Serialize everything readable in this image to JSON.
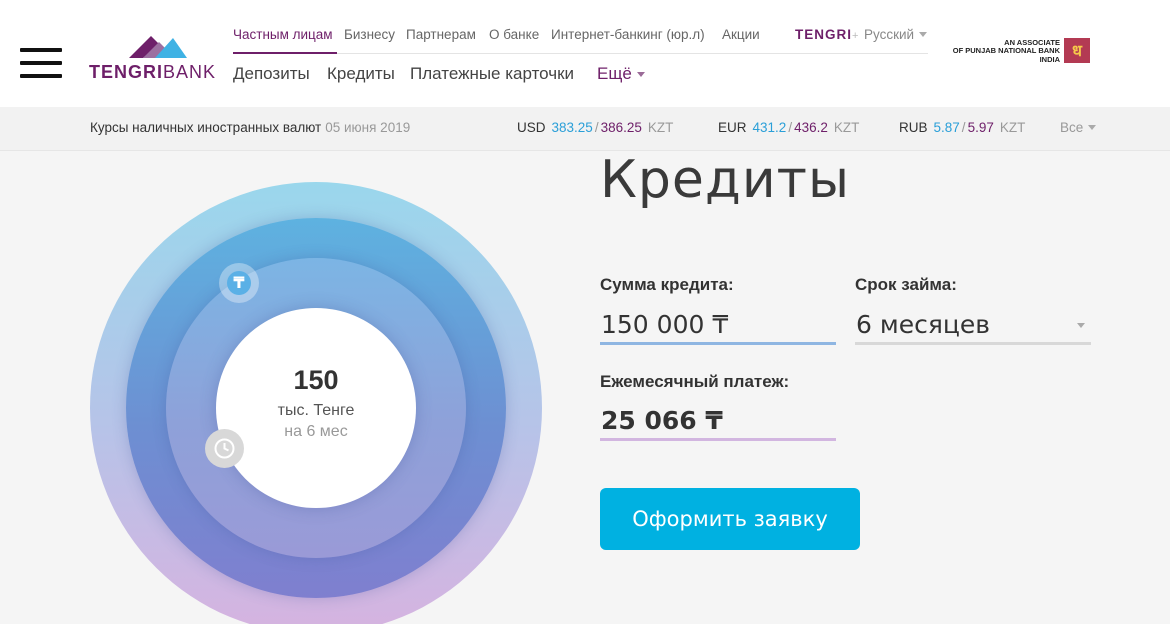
{
  "brand": {
    "name_bold": "TENGRI",
    "name_light": "BANK",
    "associate_line1": "AN ASSOCIATE",
    "associate_line2": "OF PUNJAB NATIONAL BANK",
    "associate_line3": "INDIA"
  },
  "topnav": {
    "items": [
      "Частным лицам",
      "Бизнесу",
      "Партнерам",
      "О банке",
      "Интернет-банкинг (юр.л)",
      "Акции"
    ],
    "tengri_plus": "TENGRI",
    "tengri_plus_sign": "+",
    "language": "Русский"
  },
  "mainnav": {
    "items": [
      "Депозиты",
      "Кредиты",
      "Платежные карточки"
    ],
    "more": "Ещё"
  },
  "rates": {
    "label": "Курсы наличных иностранных валют",
    "date": "05 июня 2019",
    "items": [
      {
        "currency": "USD",
        "buy": "383.25",
        "sell": "386.25",
        "unit": "KZT"
      },
      {
        "currency": "EUR",
        "buy": "431.2",
        "sell": "436.2",
        "unit": "KZT"
      },
      {
        "currency": "RUB",
        "buy": "5.87",
        "sell": "5.97",
        "unit": "KZT"
      }
    ],
    "separator": "/",
    "all": "Все"
  },
  "calculator": {
    "title": "Кредиты",
    "amount_label": "Сумма кредита:",
    "amount_value": "150 000 ₸",
    "term_label": "Срок займа:",
    "term_value": "6 месяцев",
    "payment_label": "Ежемесячный платеж:",
    "payment_value": "25 066 ₸",
    "submit": "Оформить заявку"
  },
  "visual": {
    "amount": "150",
    "unit": "тыс. Тенге",
    "term": "на 6 мес",
    "tenge_symbol": "₸"
  },
  "colors": {
    "brand_purple": "#6e1f69",
    "accent_blue": "#00b1e1",
    "rate_buy": "#2a9fd8"
  },
  "icons": [
    "menu-icon",
    "tenge-icon",
    "clock-icon",
    "chevron-down-icon"
  ]
}
